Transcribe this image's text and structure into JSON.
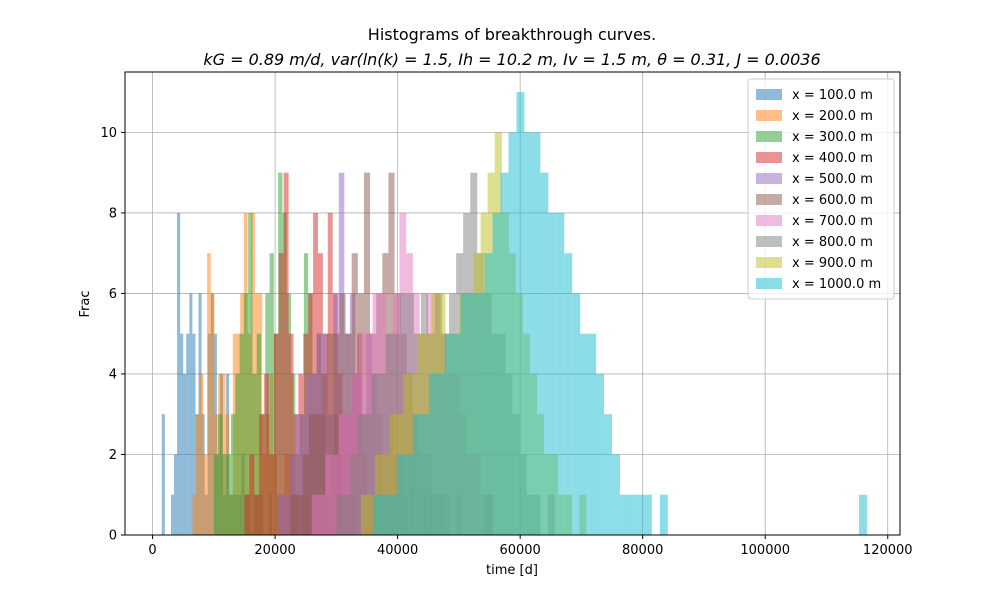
{
  "chart_data": {
    "type": "bar",
    "title": "Histograms of breakthrough curves.",
    "subtitle": "kG = 0.89 m/d, var(ln(k) = 1.5, Ih = 10.2 m, Iv = 1.5 m, θ = 0.31, J = 0.0036",
    "xlabel": "time [d]",
    "ylabel": "Frac",
    "xlim": [
      -4500,
      122000
    ],
    "ylim": [
      0,
      11.5
    ],
    "x_ticks": [
      0,
      20000,
      40000,
      60000,
      80000,
      100000,
      120000
    ],
    "y_ticks": [
      0,
      2,
      4,
      6,
      8,
      10
    ],
    "grid": true,
    "legend_position": "top-right",
    "alpha": 0.5,
    "series": [
      {
        "name": "x = 100.0 m",
        "color": "#1f77b4",
        "start": 1500,
        "bin_width": 500,
        "counts": [
          3,
          0,
          0,
          1,
          2,
          8,
          5,
          4,
          5,
          6,
          5,
          3,
          6,
          3,
          1,
          5,
          6,
          5,
          2,
          4,
          1,
          4,
          1,
          1,
          1,
          1,
          2,
          1,
          1,
          0,
          1,
          1,
          1,
          0,
          0,
          1,
          0,
          0,
          0,
          0,
          0,
          0,
          0,
          0,
          0,
          0,
          0,
          0,
          0,
          0,
          0,
          0,
          0,
          0,
          0,
          0,
          0,
          0,
          0,
          0,
          0,
          0,
          0,
          0,
          0,
          0,
          0,
          0,
          0,
          0,
          0,
          0,
          0,
          0,
          0,
          0,
          1,
          2,
          2,
          1
        ]
      },
      {
        "name": "x = 200.0 m",
        "color": "#ff7f0e",
        "start": 6500,
        "bin_width": 600,
        "counts": [
          1,
          3,
          4,
          2,
          7,
          6,
          3,
          4,
          4,
          3,
          1,
          5,
          5,
          6,
          8,
          5,
          8,
          6,
          6,
          2,
          3,
          4,
          2,
          1,
          1,
          2,
          2,
          2,
          1,
          0,
          1,
          1,
          0,
          0,
          0,
          0,
          0,
          0,
          0,
          0,
          0,
          0,
          0,
          0,
          0,
          0,
          0,
          0,
          0,
          0,
          0,
          0,
          0,
          0,
          0,
          0,
          0,
          0,
          0,
          0,
          0,
          0,
          0,
          0,
          0,
          1
        ]
      },
      {
        "name": "x = 300.0 m",
        "color": "#2ca02c",
        "start": 10000,
        "bin_width": 700,
        "counts": [
          2,
          3,
          2,
          2,
          3,
          4,
          5,
          6,
          8,
          4,
          5,
          3,
          6,
          7,
          5,
          9,
          8,
          6,
          4,
          2,
          3,
          7,
          6,
          4,
          5,
          3,
          1,
          2,
          3,
          2,
          1,
          1,
          1,
          0,
          0,
          0,
          0,
          0,
          0,
          0,
          0,
          0,
          0,
          0,
          0,
          0,
          0,
          0,
          0,
          0,
          0,
          0,
          0,
          0,
          0,
          0,
          0,
          0,
          0,
          0,
          0,
          0,
          0,
          0,
          1
        ]
      },
      {
        "name": "x = 400.0 m",
        "color": "#d62728",
        "start": 15000,
        "bin_width": 800,
        "counts": [
          1,
          2,
          1,
          3,
          4,
          2,
          5,
          7,
          9,
          5,
          3,
          4,
          5,
          6,
          8,
          7,
          5,
          8,
          6,
          4,
          3,
          3,
          4,
          5,
          2,
          1,
          1,
          2,
          1,
          0,
          1,
          1,
          0,
          0,
          0,
          0,
          0,
          0,
          0,
          0,
          0,
          0,
          0,
          0,
          0,
          0,
          0,
          0,
          0,
          1
        ]
      },
      {
        "name": "x = 500.0 m",
        "color": "#9467bd",
        "start": 20500,
        "bin_width": 900,
        "counts": [
          1,
          1,
          2,
          3,
          3,
          4,
          4,
          5,
          5,
          3,
          6,
          9,
          5,
          6,
          4,
          3,
          5,
          4,
          3,
          2,
          3,
          2,
          1,
          1,
          2,
          1,
          1,
          1,
          0,
          1
        ]
      },
      {
        "name": "x = 600.0 m",
        "color": "#8c564b",
        "start": 22500,
        "bin_width": 1000,
        "counts": [
          1,
          1,
          2,
          3,
          3,
          4,
          5,
          5,
          6,
          5,
          7,
          6,
          9,
          5,
          6,
          7,
          9,
          6,
          5,
          4,
          3,
          2,
          2,
          1,
          1,
          1,
          0,
          1
        ]
      },
      {
        "name": "x = 700.0 m",
        "color": "#e377c2",
        "start": 26000,
        "bin_width": 1100,
        "counts": [
          1,
          1,
          2,
          2,
          3,
          3,
          4,
          5,
          5,
          6,
          6,
          5,
          6,
          8,
          7,
          6,
          5,
          6,
          6,
          5,
          4,
          4,
          3,
          2,
          2,
          1,
          1
        ]
      },
      {
        "name": "x = 800.0 m",
        "color": "#7f7f7f",
        "start": 30000,
        "bin_width": 1150,
        "counts": [
          1,
          1,
          2,
          3,
          3,
          4,
          4,
          5,
          5,
          6,
          6,
          5,
          6,
          5,
          6,
          5,
          6,
          7,
          8,
          9,
          7,
          6,
          5,
          5,
          4,
          3,
          2,
          1,
          1,
          0,
          1
        ]
      },
      {
        "name": "x = 900.0 m",
        "color": "#bcbd22",
        "start": 34000,
        "bin_width": 1150,
        "counts": [
          1,
          1,
          2,
          2,
          3,
          3,
          4,
          4,
          5,
          5,
          6,
          6,
          5,
          5,
          6,
          6,
          7,
          8,
          9,
          10,
          8,
          7,
          6,
          5,
          4,
          3,
          2,
          2,
          1,
          1,
          0,
          1
        ]
      },
      {
        "name": "x = 1000.0 m",
        "color": "#17becf",
        "start": 36000,
        "bin_width": 1300,
        "counts": [
          1,
          1,
          1,
          2,
          2,
          3,
          3,
          4,
          4,
          5,
          5,
          6,
          6,
          6,
          7,
          8,
          9,
          10,
          11,
          10,
          10,
          9,
          8,
          8,
          7,
          6,
          5,
          5,
          4,
          3,
          2,
          1,
          1,
          1,
          1,
          0,
          1,
          0,
          0,
          0,
          0,
          0,
          0,
          0,
          0,
          0,
          0,
          0,
          0,
          0,
          0,
          0,
          0,
          0,
          0,
          0,
          0,
          0,
          0,
          0,
          0,
          1
        ]
      }
    ]
  }
}
